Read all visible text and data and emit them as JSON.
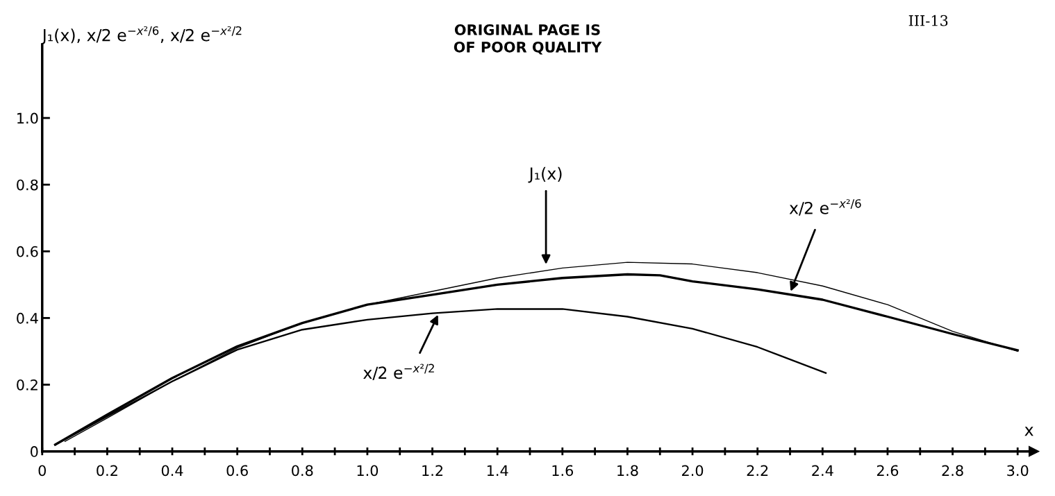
{
  "chart_data": {
    "type": "line",
    "ylabel": "J₁(x), x/2 e$^{−x²/6}$, x/2 e$^{−x²/2}$",
    "xlabel": "x",
    "xlim": [
      0,
      3.05
    ],
    "ylim": [
      0,
      1.22
    ],
    "xticks": [
      0,
      {
        "value": 0.1,
        "label": null
      },
      0.2,
      {
        "value": 0.3,
        "label": null
      },
      0.4,
      {
        "value": 0.5,
        "label": null
      },
      0.6,
      {
        "value": 0.7,
        "label": null
      },
      0.8,
      {
        "value": 0.9,
        "label": null
      },
      {
        "value": 1.0,
        "label": "1.0"
      },
      {
        "value": 1.1,
        "label": null
      },
      1.2,
      {
        "value": 1.3,
        "label": null
      },
      1.4,
      {
        "value": 1.5,
        "label": null
      },
      1.6,
      {
        "value": 1.7,
        "label": null
      },
      1.8,
      {
        "value": 1.9,
        "label": null
      },
      {
        "value": 2.0,
        "label": "2.0"
      },
      {
        "value": 2.1,
        "label": null
      },
      2.2,
      {
        "value": 2.3,
        "label": null
      },
      2.4,
      {
        "value": 2.5,
        "label": null
      },
      2.6,
      {
        "value": 2.7,
        "label": null
      },
      2.8,
      {
        "value": 2.9,
        "label": null
      },
      {
        "value": 3.0,
        "label": "3.0"
      }
    ],
    "yticks": [
      0,
      0.2,
      0.4,
      0.6,
      0.8,
      {
        "value": 1.0,
        "label": "1.0"
      }
    ],
    "marker": "none",
    "line_style": "solid",
    "series": [
      {
        "color": "#000000",
        "x": [
          0.07,
          0.2,
          0.4,
          0.6,
          0.8,
          1.0,
          1.2,
          1.4,
          1.6,
          1.8,
          2.0,
          2.2,
          2.4,
          2.6,
          2.8,
          3.0
        ],
        "values": [
          0.03,
          0.1,
          0.21,
          0.31,
          0.385,
          0.44,
          0.48,
          0.52,
          0.55,
          0.567,
          0.562,
          0.536,
          0.496,
          0.44,
          0.36,
          0.3
        ]
      },
      {
        "color": "#000000",
        "x": [
          0.04,
          0.2,
          0.4,
          0.6,
          0.8,
          1.0,
          1.2,
          1.4,
          1.6,
          1.8,
          1.9,
          2.0,
          2.2,
          2.4,
          2.6,
          2.8,
          3.0
        ],
        "values": [
          0.02,
          0.11,
          0.22,
          0.315,
          0.385,
          0.44,
          0.47,
          0.5,
          0.52,
          0.531,
          0.528,
          0.51,
          0.486,
          0.455,
          0.404,
          0.352,
          0.303
        ]
      },
      {
        "color": "#000000",
        "x": [
          0.04,
          0.2,
          0.4,
          0.6,
          0.8,
          1.0,
          1.2,
          1.4,
          1.6,
          1.8,
          2.0,
          2.2,
          2.41
        ],
        "values": [
          0.02,
          0.105,
          0.21,
          0.305,
          0.365,
          0.395,
          0.414,
          0.427,
          0.427,
          0.404,
          0.368,
          0.313,
          0.235
        ]
      }
    ],
    "annotations": [
      "J₁(x)",
      "x/2 e$^{−x²/6}$",
      "x/2 e$^{−x²/2}$",
      "ORIGINAL PAGE IS\nOF POOR QUALITY",
      "III-13"
    ]
  }
}
